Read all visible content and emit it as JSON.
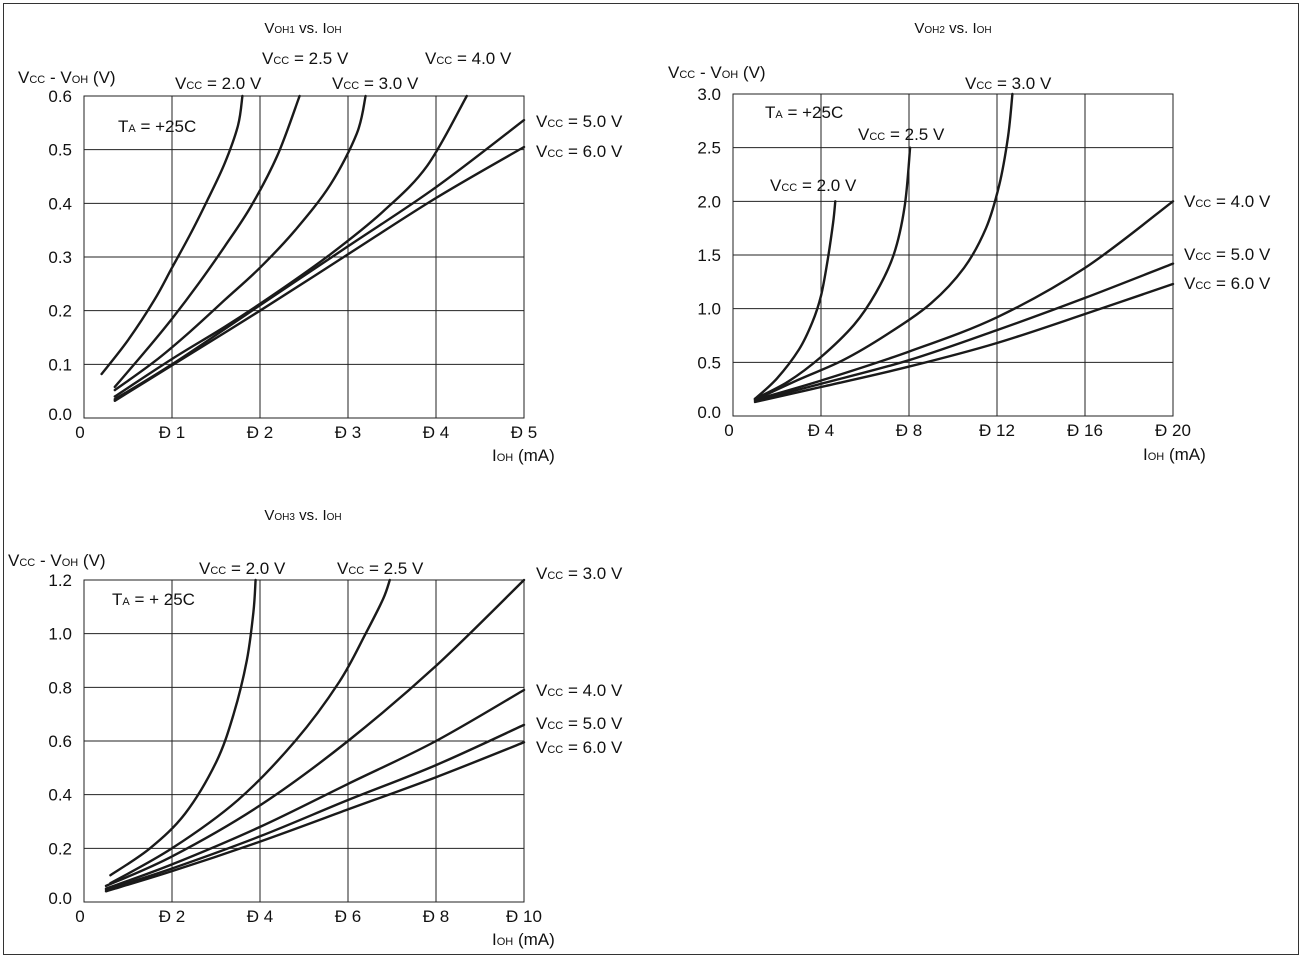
{
  "chart_data": [
    {
      "type": "line",
      "title": {
        "pre": "V",
        "sub": "OH1",
        "post": " vs. I",
        "sub2": "OH"
      },
      "ylabel": {
        "pre": "V",
        "sub": "CC",
        "mid": " - V",
        "sub2": "OH",
        "post": " (V)"
      },
      "xlabel": {
        "pre": "I",
        "sub": "OH",
        "post": " (mA)"
      },
      "ambient": {
        "pre": "T",
        "sub": "A",
        "post": " = +25C"
      },
      "xlim": [
        0,
        5
      ],
      "ylim": [
        0,
        0.6
      ],
      "x_ticks": [
        {
          "v": 0,
          "label": "0"
        },
        {
          "v": 1,
          "label": "Ð 1"
        },
        {
          "v": 2,
          "label": "Ð 2"
        },
        {
          "v": 3,
          "label": "Ð 3"
        },
        {
          "v": 4,
          "label": "Ð 4"
        },
        {
          "v": 5,
          "label": "Ð 5"
        }
      ],
      "y_ticks": [
        {
          "v": 0,
          "label": "0.0"
        },
        {
          "v": 0.1,
          "label": "0.1"
        },
        {
          "v": 0.2,
          "label": "0.2"
        },
        {
          "v": 0.3,
          "label": "0.3"
        },
        {
          "v": 0.4,
          "label": "0.4"
        },
        {
          "v": 0.5,
          "label": "0.5"
        },
        {
          "v": 0.6,
          "label": "0.6"
        }
      ],
      "grid": true,
      "series": [
        {
          "name": "2.0 V",
          "label": {
            "at": "above-end"
          },
          "x": [
            0.2,
            0.5,
            0.8,
            1.0,
            1.2,
            1.4,
            1.6,
            1.75,
            1.8
          ],
          "y": [
            0.082,
            0.145,
            0.22,
            0.28,
            0.34,
            0.405,
            0.475,
            0.545,
            0.6
          ]
        },
        {
          "name": "2.5 V",
          "label": {
            "at": "above-end"
          },
          "x": [
            0.35,
            0.7,
            1.0,
            1.3,
            1.6,
            1.9,
            2.2,
            2.45
          ],
          "y": [
            0.058,
            0.125,
            0.185,
            0.25,
            0.32,
            0.395,
            0.49,
            0.6
          ]
        },
        {
          "name": "3.0 V",
          "label": {
            "at": "above-end"
          },
          "x": [
            0.35,
            0.8,
            1.2,
            1.6,
            2.0,
            2.4,
            2.8,
            3.1,
            3.2
          ],
          "y": [
            0.052,
            0.105,
            0.16,
            0.22,
            0.28,
            0.35,
            0.435,
            0.53,
            0.6
          ]
        },
        {
          "name": "4.0 V",
          "label": {
            "at": "above-end"
          },
          "x": [
            0.35,
            1.0,
            1.6,
            2.2,
            2.8,
            3.4,
            3.9,
            4.35
          ],
          "y": [
            0.04,
            0.11,
            0.17,
            0.235,
            0.305,
            0.385,
            0.47,
            0.6
          ]
        },
        {
          "name": "5.0 V",
          "label": {
            "at": "right"
          },
          "x": [
            0.35,
            1.0,
            2.0,
            3.0,
            4.0,
            5.0
          ],
          "y": [
            0.035,
            0.1,
            0.21,
            0.32,
            0.43,
            0.555
          ]
        },
        {
          "name": "6.0 V",
          "label": {
            "at": "right"
          },
          "x": [
            0.35,
            1.0,
            2.0,
            3.0,
            4.0,
            5.0
          ],
          "y": [
            0.032,
            0.098,
            0.2,
            0.305,
            0.41,
            0.505
          ]
        }
      ],
      "series_prefix": {
        "pre": "V",
        "sub": "CC",
        "post": " = "
      }
    },
    {
      "type": "line",
      "title": {
        "pre": "V",
        "sub": "OH2",
        "post": " vs. I",
        "sub2": "OH"
      },
      "ylabel": {
        "pre": "V",
        "sub": "CC",
        "mid": " - V",
        "sub2": "OH",
        "post": " (V)"
      },
      "xlabel": {
        "pre": "I",
        "sub": "OH",
        "post": " (mA)"
      },
      "ambient": {
        "pre": "T",
        "sub": "A",
        "post": " = +25C"
      },
      "xlim": [
        0,
        20
      ],
      "ylim": [
        0,
        3.0
      ],
      "x_ticks": [
        {
          "v": 0,
          "label": "0"
        },
        {
          "v": 4,
          "label": "Ð 4"
        },
        {
          "v": 8,
          "label": "Ð 8"
        },
        {
          "v": 12,
          "label": "Ð 12"
        },
        {
          "v": 16,
          "label": "Ð 16"
        },
        {
          "v": 20,
          "label": "Ð 20"
        }
      ],
      "y_ticks": [
        {
          "v": 0,
          "label": "0.0"
        },
        {
          "v": 0.5,
          "label": "0.5"
        },
        {
          "v": 1.0,
          "label": "1.0"
        },
        {
          "v": 1.5,
          "label": "1.5"
        },
        {
          "v": 2.0,
          "label": "2.0"
        },
        {
          "v": 2.5,
          "label": "2.5"
        },
        {
          "v": 3.0,
          "label": "3.0"
        }
      ],
      "grid": true,
      "series": [
        {
          "name": "2.0 V",
          "label": {
            "at": "left-end"
          },
          "x": [
            1.0,
            2.0,
            3.0,
            3.6,
            4.0,
            4.3,
            4.55,
            4.65
          ],
          "y": [
            0.16,
            0.35,
            0.62,
            0.87,
            1.12,
            1.45,
            1.8,
            2.0
          ]
        },
        {
          "name": "2.5 V",
          "label": {
            "at": "left-end"
          },
          "x": [
            1.0,
            2.5,
            4.0,
            5.5,
            6.5,
            7.3,
            7.8,
            8.05
          ],
          "y": [
            0.16,
            0.32,
            0.55,
            0.85,
            1.15,
            1.5,
            1.95,
            2.5
          ]
        },
        {
          "name": "3.0 V",
          "label": {
            "at": "above-end"
          },
          "x": [
            1.0,
            3.0,
            5.0,
            7.0,
            9.0,
            10.5,
            11.5,
            12.1,
            12.5,
            12.7
          ],
          "y": [
            0.15,
            0.34,
            0.52,
            0.76,
            1.05,
            1.38,
            1.75,
            2.15,
            2.6,
            3.0
          ]
        },
        {
          "name": "4.0 V",
          "label": {
            "at": "right"
          },
          "x": [
            1.0,
            4.0,
            8.0,
            12.0,
            16.0,
            20.0
          ],
          "y": [
            0.15,
            0.33,
            0.6,
            0.92,
            1.38,
            2.0
          ]
        },
        {
          "name": "5.0 V",
          "label": {
            "at": "right"
          },
          "x": [
            1.0,
            4.0,
            8.0,
            12.0,
            16.0,
            20.0
          ],
          "y": [
            0.14,
            0.3,
            0.52,
            0.8,
            1.1,
            1.42
          ]
        },
        {
          "name": "6.0 V",
          "label": {
            "at": "right"
          },
          "x": [
            1.0,
            4.0,
            8.0,
            12.0,
            16.0,
            20.0
          ],
          "y": [
            0.13,
            0.27,
            0.46,
            0.68,
            0.95,
            1.23
          ]
        }
      ],
      "series_prefix": {
        "pre": "V",
        "sub": "CC",
        "post": " = "
      }
    },
    {
      "type": "line",
      "title": {
        "pre": "V",
        "sub": "OH3",
        "post": " vs. I",
        "sub2": "OH"
      },
      "ylabel": {
        "pre": "V",
        "sub": "CC",
        "mid": " - V",
        "sub2": "OH",
        "post": " (V)"
      },
      "xlabel": {
        "pre": "I",
        "sub": "OH",
        "post": " (mA)"
      },
      "ambient": {
        "pre": "T",
        "sub": "A",
        "post": " = + 25C"
      },
      "xlim": [
        0,
        10
      ],
      "ylim": [
        0,
        1.2
      ],
      "x_ticks": [
        {
          "v": 0,
          "label": "0"
        },
        {
          "v": 2,
          "label": "Ð 2"
        },
        {
          "v": 4,
          "label": "Ð 4"
        },
        {
          "v": 6,
          "label": "Ð 6"
        },
        {
          "v": 8,
          "label": "Ð 8"
        },
        {
          "v": 10,
          "label": "Ð 10"
        }
      ],
      "y_ticks": [
        {
          "v": 0,
          "label": "0.0"
        },
        {
          "v": 0.2,
          "label": "0.2"
        },
        {
          "v": 0.4,
          "label": "0.4"
        },
        {
          "v": 0.6,
          "label": "0.6"
        },
        {
          "v": 0.8,
          "label": "0.8"
        },
        {
          "v": 1.0,
          "label": "1.0"
        },
        {
          "v": 1.2,
          "label": "1.2"
        }
      ],
      "grid": true,
      "series": [
        {
          "name": "2.0 V",
          "label": {
            "at": "above-end"
          },
          "x": [
            0.6,
            1.5,
            2.3,
            3.0,
            3.4,
            3.7,
            3.85,
            3.9
          ],
          "y": [
            0.1,
            0.2,
            0.33,
            0.52,
            0.7,
            0.9,
            1.08,
            1.2
          ]
        },
        {
          "name": "2.5 V",
          "label": {
            "at": "above-end"
          },
          "x": [
            0.6,
            2.0,
            3.5,
            4.8,
            5.8,
            6.4,
            6.8,
            6.95
          ],
          "y": [
            0.07,
            0.2,
            0.38,
            0.6,
            0.82,
            1.0,
            1.13,
            1.2
          ]
        },
        {
          "name": "3.0 V",
          "label": {
            "at": "right"
          },
          "x": [
            0.5,
            2.0,
            4.0,
            6.0,
            8.0,
            10.0
          ],
          "y": [
            0.06,
            0.17,
            0.36,
            0.6,
            0.88,
            1.2
          ]
        },
        {
          "name": "4.0 V",
          "label": {
            "at": "right"
          },
          "x": [
            0.5,
            2.0,
            4.0,
            6.0,
            8.0,
            10.0
          ],
          "y": [
            0.05,
            0.14,
            0.28,
            0.44,
            0.6,
            0.79
          ]
        },
        {
          "name": "5.0 V",
          "label": {
            "at": "right"
          },
          "x": [
            0.5,
            2.0,
            4.0,
            6.0,
            8.0,
            10.0
          ],
          "y": [
            0.045,
            0.125,
            0.245,
            0.38,
            0.51,
            0.66
          ]
        },
        {
          "name": "6.0 V",
          "label": {
            "at": "right"
          },
          "x": [
            0.5,
            2.0,
            4.0,
            6.0,
            8.0,
            10.0
          ],
          "y": [
            0.04,
            0.115,
            0.225,
            0.345,
            0.465,
            0.595
          ]
        }
      ],
      "series_prefix": {
        "pre": "V",
        "sub": "CC",
        "post": " = "
      }
    }
  ]
}
